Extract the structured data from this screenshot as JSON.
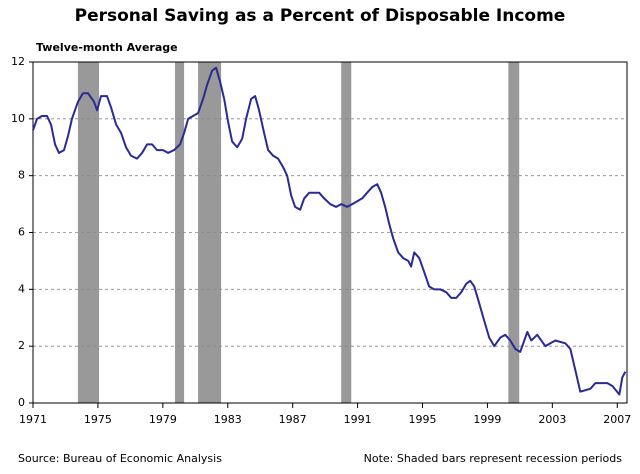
{
  "chart_data": {
    "type": "line",
    "title": "Personal Saving as a Percent of Disposable Income",
    "y_label": "Twelve-month Average",
    "source": "Source: Bureau of Economic Analysis",
    "note": "Note: Shaded bars represent recession periods",
    "color": "#2a2a96",
    "shade_color": "#999999",
    "grid": true,
    "xlim": [
      1971,
      2007.6
    ],
    "ylim": [
      0,
      12
    ],
    "xticks": [
      1971,
      1975,
      1979,
      1983,
      1987,
      1991,
      1995,
      1999,
      2003,
      2007
    ],
    "yticks": [
      0,
      2,
      4,
      6,
      8,
      10,
      12
    ],
    "shaded": [
      [
        1973.77,
        1975.07
      ],
      [
        1979.75,
        1980.31
      ],
      [
        1981.17,
        1982.59
      ],
      [
        1989.99,
        1990.61
      ],
      [
        2000.29,
        2000.96
      ]
    ],
    "x": [
      1971.0,
      1971.25,
      1971.55,
      1971.86,
      1972.11,
      1972.36,
      1972.6,
      1972.91,
      1973.16,
      1973.4,
      1973.77,
      1974.08,
      1974.39,
      1974.76,
      1974.95,
      1975.19,
      1975.56,
      1975.81,
      1976.12,
      1976.43,
      1976.73,
      1977.04,
      1977.41,
      1977.72,
      1978.03,
      1978.34,
      1978.64,
      1979.01,
      1979.32,
      1979.69,
      1980.06,
      1980.31,
      1980.56,
      1980.86,
      1981.17,
      1981.48,
      1981.73,
      1982.04,
      1982.28,
      1982.53,
      1982.78,
      1983.02,
      1983.27,
      1983.58,
      1983.89,
      1984.13,
      1984.44,
      1984.69,
      1984.93,
      1985.24,
      1985.49,
      1985.8,
      1986.1,
      1986.41,
      1986.66,
      1986.91,
      1987.15,
      1987.46,
      1987.71,
      1988.02,
      1988.32,
      1988.63,
      1988.94,
      1989.31,
      1989.68,
      1989.99,
      1990.36,
      1990.67,
      1990.98,
      1991.28,
      1991.59,
      1991.9,
      1992.21,
      1992.45,
      1992.7,
      1992.95,
      1993.19,
      1993.5,
      1993.81,
      1994.12,
      1994.3,
      1994.49,
      1994.8,
      1995.11,
      1995.41,
      1995.72,
      1996.09,
      1996.46,
      1996.77,
      1997.08,
      1997.39,
      1997.7,
      1997.94,
      1998.19,
      1998.5,
      1998.8,
      1999.11,
      1999.42,
      1999.79,
      2000.1,
      2000.41,
      2000.72,
      2001.02,
      2001.46,
      2001.7,
      2002.07,
      2002.57,
      2003.18,
      2003.8,
      2004.11,
      2004.48,
      2004.72,
      2005.34,
      2005.65,
      2006.39,
      2006.7,
      2007.13,
      2007.31,
      2007.5
    ],
    "values": [
      9.6,
      10.0,
      10.1,
      10.1,
      9.8,
      9.1,
      8.8,
      8.9,
      9.4,
      10.0,
      10.6,
      10.9,
      10.9,
      10.6,
      10.3,
      10.8,
      10.8,
      10.4,
      9.8,
      9.5,
      9.0,
      8.7,
      8.6,
      8.8,
      9.1,
      9.1,
      8.9,
      8.9,
      8.8,
      8.9,
      9.1,
      9.5,
      10.0,
      10.1,
      10.2,
      10.7,
      11.2,
      11.7,
      11.8,
      11.3,
      10.7,
      9.9,
      9.2,
      9.0,
      9.3,
      10.0,
      10.7,
      10.8,
      10.3,
      9.5,
      8.9,
      8.7,
      8.6,
      8.3,
      8.0,
      7.3,
      6.9,
      6.8,
      7.2,
      7.4,
      7.4,
      7.4,
      7.2,
      7.0,
      6.9,
      7.0,
      6.9,
      7.0,
      7.1,
      7.2,
      7.4,
      7.6,
      7.7,
      7.4,
      6.9,
      6.3,
      5.8,
      5.3,
      5.1,
      5.0,
      4.8,
      5.3,
      5.1,
      4.6,
      4.1,
      4.0,
      4.0,
      3.9,
      3.7,
      3.7,
      3.9,
      4.2,
      4.3,
      4.1,
      3.5,
      2.9,
      2.3,
      2.0,
      2.3,
      2.4,
      2.2,
      1.9,
      1.8,
      2.5,
      2.2,
      2.4,
      2.0,
      2.2,
      2.1,
      1.9,
      1.0,
      0.4,
      0.5,
      0.7,
      0.7,
      0.6,
      0.3,
      0.9,
      1.1
    ]
  }
}
